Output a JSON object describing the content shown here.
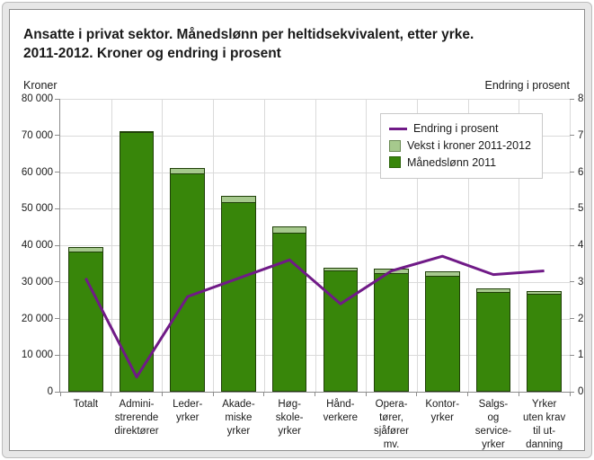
{
  "title_line1": "Ansatte i privat sektor. Månedslønn per heltidsekvivalent, etter yrke.",
  "title_line2": "2011-2012. Kroner og endring i prosent",
  "left_axis_title": "Kroner",
  "right_axis_title": "Endring i prosent",
  "colors": {
    "bar_2011": "#38860a",
    "bar_growth": "#a6c98d",
    "bar_border": "#1f3f08",
    "line": "#701a87",
    "grid": "#dadada",
    "axis": "#8c8c8c",
    "frame_outer": "#bcbcbc",
    "frame_inner": "#8f8f8f",
    "text": "#1a1a1a"
  },
  "legend": [
    {
      "label": "Endring i prosent",
      "swatch": "line",
      "color": "#701a87"
    },
    {
      "label": "Vekst i kroner 2011-2012",
      "swatch": "box",
      "color": "#a6c98d"
    },
    {
      "label": "Månedslønn 2011",
      "swatch": "box",
      "color": "#38860a"
    }
  ],
  "chart_data": {
    "type": "bar",
    "subtype": "stacked bars with overlay line on secondary axis",
    "title": "Ansatte i privat sektor. Månedslønn per heltidsekvivalent, etter yrke. 2011-2012. Kroner og endring i prosent",
    "categories": [
      "Totalt",
      "Administrerende direktører",
      "Lederyrker",
      "Akademiske yrker",
      "Høgskoleyrker",
      "Håndverkere",
      "Operatører, sjåfører mv.",
      "Kontoryrker",
      "Salgs- og serviceyrker",
      "Yrker uten krav til utdanning"
    ],
    "category_label_lines": [
      [
        "Totalt"
      ],
      [
        "Admini-",
        "strerende",
        "direktører"
      ],
      [
        "Leder-",
        "yrker"
      ],
      [
        "Akade-",
        "miske",
        "yrker"
      ],
      [
        "Høg-",
        "skole-",
        "yrker"
      ],
      [
        "Hånd-",
        "verkere"
      ],
      [
        "Opera-",
        "tører,",
        "sjåfører",
        "mv."
      ],
      [
        "Kontor-",
        "yrker"
      ],
      [
        "Salgs-",
        "og",
        "service-",
        "yrker"
      ],
      [
        "Yrker",
        "uten krav",
        "til ut-",
        "danning"
      ]
    ],
    "series": [
      {
        "name": "Månedslønn 2011",
        "type": "bar",
        "axis": "left",
        "color": "#38860a",
        "values": [
          38400,
          70900,
          59600,
          51900,
          43500,
          33100,
          32500,
          31700,
          27200,
          26700
        ]
      },
      {
        "name": "Vekst i kroner 2011-2012",
        "type": "bar",
        "stacked_on": "Månedslønn 2011",
        "axis": "left",
        "color": "#a6c98d",
        "values": [
          1200,
          300,
          1600,
          1600,
          1600,
          800,
          1100,
          1200,
          900,
          900
        ]
      },
      {
        "name": "Endring i prosent",
        "type": "line",
        "axis": "right",
        "color": "#701a87",
        "values": [
          3.1,
          0.4,
          2.6,
          3.1,
          3.6,
          2.4,
          3.3,
          3.7,
          3.2,
          3.3
        ]
      }
    ],
    "left_axis": {
      "title": "Kroner",
      "min": 0,
      "max": 80000,
      "step": 10000,
      "tick_labels": [
        "0",
        "10 000",
        "20 000",
        "30 000",
        "40 000",
        "50 000",
        "60 000",
        "70 000",
        "80 000"
      ]
    },
    "right_axis": {
      "title": "Endring i prosent",
      "min": 0,
      "max": 8,
      "step": 1,
      "tick_labels": [
        "0",
        "1",
        "2",
        "3",
        "4",
        "5",
        "6",
        "7",
        "8"
      ]
    },
    "grid": true,
    "legend_position": "top-right"
  }
}
